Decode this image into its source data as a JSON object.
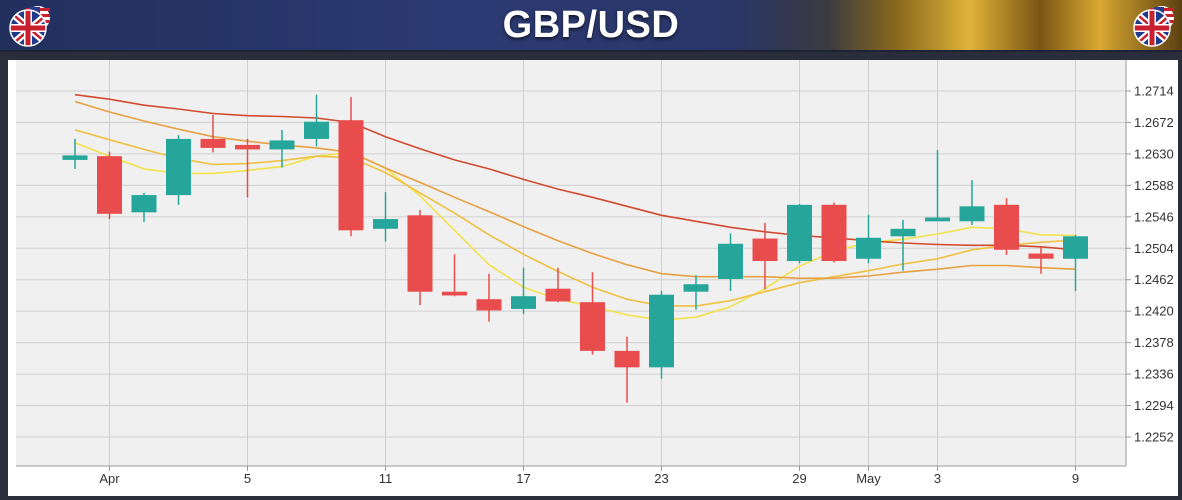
{
  "header": {
    "title": "GBP/USD",
    "left_flag_icon": "uk-us-flag-icon",
    "right_flag_icon": "uk-us-flag-icon"
  },
  "colors": {
    "bullish": "#26a69a",
    "bearish": "#e84c4c",
    "ma_fast": "#f2e24a",
    "ma_2": "#f0c040",
    "ma_3": "#e8a040",
    "ma_4": "#d24a30"
  },
  "chart_data": {
    "type": "candlestick",
    "title": "GBP/USD",
    "y_ticks": [
      "1.2714",
      "1.2672",
      "1.2630",
      "1.2588",
      "1.2546",
      "1.2504",
      "1.2462",
      "1.2420",
      "1.2378",
      "1.2336",
      "1.2294",
      "1.2252"
    ],
    "ylim": [
      1.222,
      1.2742
    ],
    "x_tick_labels": [
      {
        "label": "Apr",
        "index": 1
      },
      {
        "label": "5",
        "index": 5
      },
      {
        "label": "11",
        "index": 9
      },
      {
        "label": "17",
        "index": 13
      },
      {
        "label": "23",
        "index": 17
      },
      {
        "label": "29",
        "index": 21
      },
      {
        "label": "May",
        "index": 23
      },
      {
        "label": "3",
        "index": 25
      },
      {
        "label": "9",
        "index": 29
      }
    ],
    "candles": [
      {
        "o": 1.2622,
        "h": 1.265,
        "l": 1.261,
        "c": 1.2628
      },
      {
        "o": 1.2627,
        "h": 1.2633,
        "l": 1.2543,
        "c": 1.255
      },
      {
        "o": 1.2552,
        "h": 1.2578,
        "l": 1.2539,
        "c": 1.2575
      },
      {
        "o": 1.2575,
        "h": 1.2655,
        "l": 1.2562,
        "c": 1.265
      },
      {
        "o": 1.265,
        "h": 1.2682,
        "l": 1.2632,
        "c": 1.2638
      },
      {
        "o": 1.2642,
        "h": 1.265,
        "l": 1.2572,
        "c": 1.2636
      },
      {
        "o": 1.2636,
        "h": 1.2662,
        "l": 1.2612,
        "c": 1.2648
      },
      {
        "o": 1.265,
        "h": 1.2709,
        "l": 1.264,
        "c": 1.2673
      },
      {
        "o": 1.2675,
        "h": 1.2706,
        "l": 1.252,
        "c": 1.2528
      },
      {
        "o": 1.253,
        "h": 1.2579,
        "l": 1.2513,
        "c": 1.2543
      },
      {
        "o": 1.2548,
        "h": 1.2555,
        "l": 1.2428,
        "c": 1.2446
      },
      {
        "o": 1.2446,
        "h": 1.2496,
        "l": 1.244,
        "c": 1.2441
      },
      {
        "o": 1.2436,
        "h": 1.247,
        "l": 1.2406,
        "c": 1.2421
      },
      {
        "o": 1.2423,
        "h": 1.2478,
        "l": 1.2416,
        "c": 1.244
      },
      {
        "o": 1.245,
        "h": 1.2478,
        "l": 1.2432,
        "c": 1.2433
      },
      {
        "o": 1.2432,
        "h": 1.2472,
        "l": 1.2362,
        "c": 1.2367
      },
      {
        "o": 1.2367,
        "h": 1.2386,
        "l": 1.2298,
        "c": 1.2345
      },
      {
        "o": 1.2345,
        "h": 1.2447,
        "l": 1.233,
        "c": 1.2442
      },
      {
        "o": 1.2446,
        "h": 1.2468,
        "l": 1.2422,
        "c": 1.2456
      },
      {
        "o": 1.2463,
        "h": 1.2524,
        "l": 1.2447,
        "c": 1.251
      },
      {
        "o": 1.2517,
        "h": 1.2538,
        "l": 1.2449,
        "c": 1.2487
      },
      {
        "o": 1.2487,
        "h": 1.2563,
        "l": 1.2484,
        "c": 1.2562
      },
      {
        "o": 1.2562,
        "h": 1.2565,
        "l": 1.2485,
        "c": 1.2487
      },
      {
        "o": 1.249,
        "h": 1.2549,
        "l": 1.2484,
        "c": 1.2518
      },
      {
        "o": 1.252,
        "h": 1.2542,
        "l": 1.2474,
        "c": 1.253
      },
      {
        "o": 1.254,
        "h": 1.2635,
        "l": 1.254,
        "c": 1.2545
      },
      {
        "o": 1.254,
        "h": 1.2595,
        "l": 1.2535,
        "c": 1.256
      },
      {
        "o": 1.2562,
        "h": 1.2571,
        "l": 1.2495,
        "c": 1.2502
      },
      {
        "o": 1.2497,
        "h": 1.2505,
        "l": 1.247,
        "c": 1.249
      },
      {
        "o": 1.249,
        "h": 1.2522,
        "l": 1.2447,
        "c": 1.252
      }
    ],
    "moving_averages": [
      {
        "color_key": "ma_fast",
        "values": [
          1.2645,
          1.2627,
          1.261,
          1.2604,
          1.2604,
          1.2608,
          1.2613,
          1.2627,
          1.2632,
          1.2611,
          1.2574,
          1.2528,
          1.2482,
          1.2452,
          1.2436,
          1.2426,
          1.2415,
          1.2408,
          1.2412,
          1.2426,
          1.245,
          1.248,
          1.25,
          1.2512,
          1.2516,
          1.2523,
          1.2532,
          1.253,
          1.2522,
          1.2521
        ]
      },
      {
        "color_key": "ma_2",
        "values": [
          1.2662,
          1.2649,
          1.2636,
          1.2624,
          1.2616,
          1.2617,
          1.2621,
          1.2627,
          1.2625,
          1.2605,
          1.2578,
          1.2551,
          1.2522,
          1.2496,
          1.2473,
          1.2452,
          1.2436,
          1.2427,
          1.2427,
          1.2434,
          1.2446,
          1.2458,
          1.2466,
          1.2474,
          1.2483,
          1.249,
          1.2502,
          1.2508,
          1.2512,
          1.2515
        ]
      },
      {
        "color_key": "ma_3",
        "values": [
          1.27,
          1.2686,
          1.2674,
          1.2663,
          1.2653,
          1.2647,
          1.2642,
          1.2638,
          1.2632,
          1.2611,
          1.2592,
          1.2572,
          1.2553,
          1.2533,
          1.2514,
          1.2497,
          1.2482,
          1.247,
          1.2466,
          1.2466,
          1.2466,
          1.2464,
          1.2464,
          1.2467,
          1.2472,
          1.2476,
          1.2481,
          1.2481,
          1.2478,
          1.2476
        ]
      },
      {
        "color_key": "ma_4",
        "values": [
          1.2709,
          1.2703,
          1.2695,
          1.269,
          1.2684,
          1.2681,
          1.268,
          1.2678,
          1.2672,
          1.2653,
          1.2637,
          1.2622,
          1.261,
          1.2596,
          1.2583,
          1.2572,
          1.256,
          1.2548,
          1.254,
          1.2532,
          1.2526,
          1.2521,
          1.2518,
          1.2514,
          1.2511,
          1.2509,
          1.2508,
          1.2508,
          1.2506,
          1.2502
        ]
      }
    ],
    "grid": true,
    "y_axis_position": "right"
  }
}
